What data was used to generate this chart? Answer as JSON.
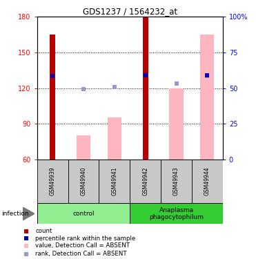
{
  "title": "GDS1237 / 1564232_at",
  "samples": [
    "GSM49939",
    "GSM49940",
    "GSM49941",
    "GSM49942",
    "GSM49943",
    "GSM49944"
  ],
  "groups": [
    {
      "name": "control",
      "color": "#90EE90",
      "samples": [
        0,
        1,
        2
      ]
    },
    {
      "name": "Anaplasma\nphagocytophilum",
      "color": "#33CC33",
      "samples": [
        3,
        4,
        5
      ]
    }
  ],
  "bar_color_dark_red": "#BB0000",
  "bar_color_pink": "#FFB6C1",
  "dot_color_blue": "#0000BB",
  "dot_color_light_blue": "#9999CC",
  "ylim_left": [
    60,
    180
  ],
  "ylim_right": [
    0,
    100
  ],
  "yticks_left": [
    60,
    90,
    120,
    150,
    180
  ],
  "yticks_right": [
    0,
    25,
    50,
    75,
    100
  ],
  "ytick_labels_right": [
    "0",
    "25",
    "50",
    "75",
    "100%"
  ],
  "red_bars": [
    165,
    0,
    0,
    180,
    0,
    0
  ],
  "pink_bars": [
    0,
    80,
    95,
    0,
    120,
    165
  ],
  "blue_dots": [
    130,
    0,
    0,
    131,
    0,
    131
  ],
  "light_blue_dots": [
    0,
    119,
    121,
    0,
    124,
    130
  ],
  "red_bar_width": 0.18,
  "pink_bar_width": 0.45,
  "infection_label": "infection",
  "legend_items": [
    {
      "color": "#BB0000",
      "label": "count",
      "marker": "s"
    },
    {
      "color": "#0000BB",
      "label": "percentile rank within the sample",
      "marker": "s"
    },
    {
      "color": "#FFB6C1",
      "label": "value, Detection Call = ABSENT",
      "marker": "s"
    },
    {
      "color": "#9999CC",
      "label": "rank, Detection Call = ABSENT",
      "marker": "s"
    }
  ]
}
